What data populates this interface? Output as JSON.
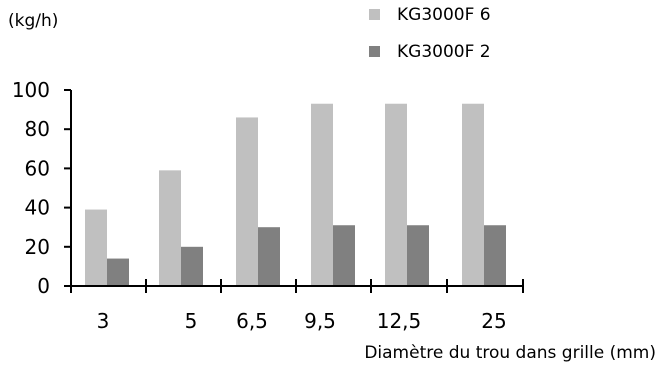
{
  "chart_data": {
    "type": "bar",
    "title": "",
    "ylabel": "(kg/h)",
    "xlabel": "Diamètre du trou dans grille (mm)",
    "categories": [
      "3",
      "5",
      "6,5",
      "9,5",
      "12,5",
      "25"
    ],
    "series": [
      {
        "name": "KG3000F 6",
        "values": [
          39,
          59,
          86,
          93,
          93,
          93
        ],
        "color": "#c0c0c0"
      },
      {
        "name": "KG3000F 2",
        "values": [
          14,
          20,
          30,
          31,
          31,
          31
        ],
        "color": "#808080"
      }
    ],
    "ylim": [
      0,
      100
    ],
    "yticks": [
      "0",
      "20",
      "40",
      "60",
      "80",
      "100"
    ],
    "grid": false,
    "legend_position": "top-right",
    "colors": {
      "axis": "#000000",
      "text": "#111111"
    }
  }
}
